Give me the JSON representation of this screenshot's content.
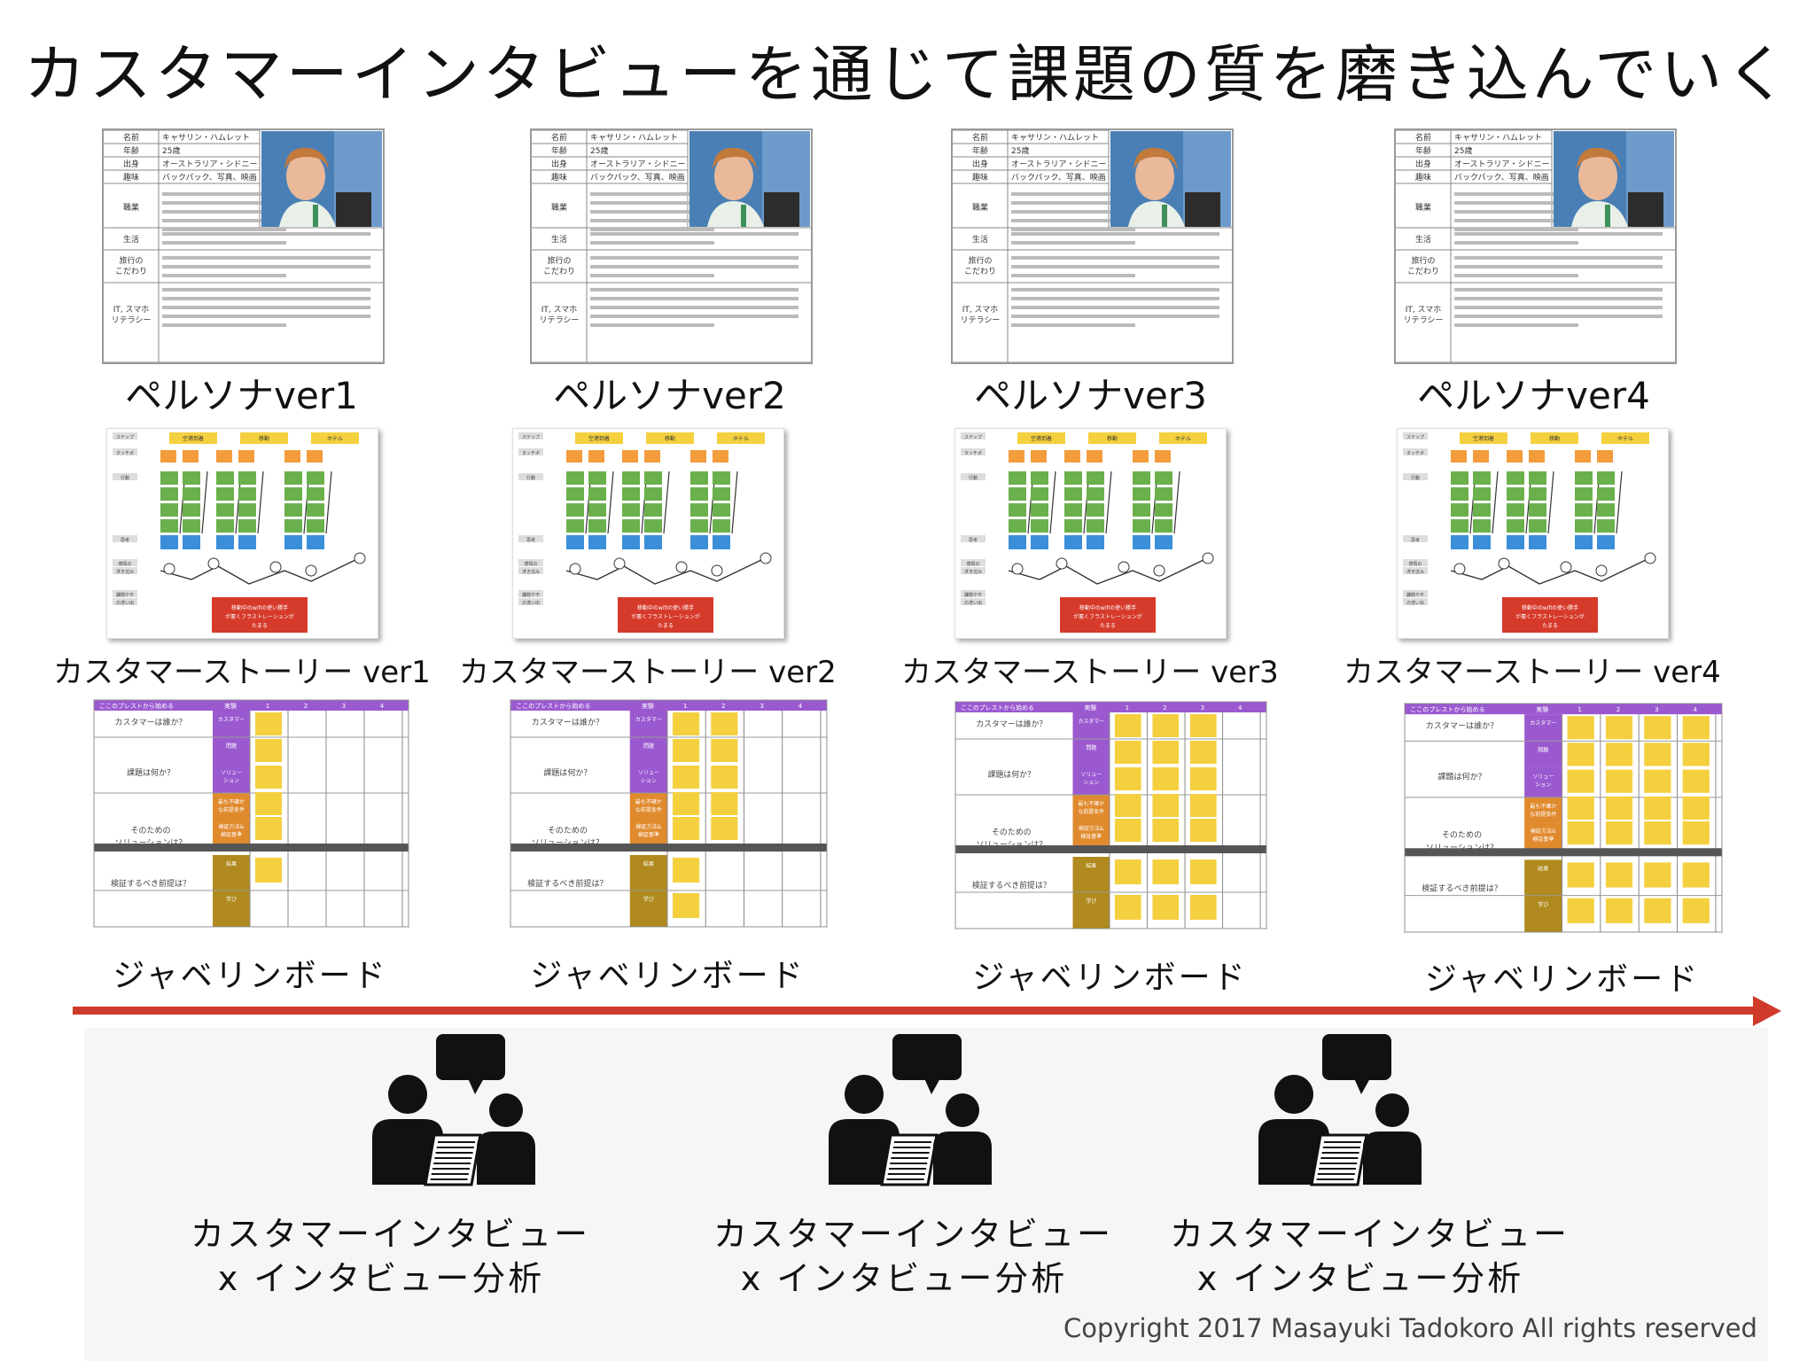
{
  "title": "カスタマーインタビューを通じて課題の質を磨き込んでいく",
  "persona": {
    "labels": [
      "名前",
      "年齢",
      "出身",
      "趣味",
      "職業",
      "生活",
      "旅行の\nこだわり",
      "IT, スマホ\nリテラシー"
    ],
    "values": [
      "キャサリン・ハムレット",
      "25歳",
      "オーストラリア・シドニー",
      "バックパック、写真、映画"
    ],
    "columns": [
      {
        "caption": "ペルソナver1"
      },
      {
        "caption": "ペルソナver2"
      },
      {
        "caption": "ペルソナver3"
      },
      {
        "caption": "ペルソナver4"
      }
    ]
  },
  "story": {
    "phases": [
      "空港到着",
      "移動",
      "ホテル"
    ],
    "row_labels": [
      "ステップ",
      "タッチポイント",
      "行動",
      "思考",
      "感情の\n浮き沈み",
      "課題や不\nの洗い出"
    ],
    "pain_point": "移動中のwifiの使い勝手が悪くフラストレーションがたまる",
    "columns": [
      {
        "caption": "カスタマーストーリー ver1"
      },
      {
        "caption": "カスタマーストーリー ver2"
      },
      {
        "caption": "カスタマーストーリー ver3"
      },
      {
        "caption": "カスタマーストーリー ver4"
      }
    ]
  },
  "board": {
    "header": [
      "ここのプレストから始める",
      "実験",
      "1",
      "2",
      "3",
      "4"
    ],
    "questions": [
      "カスタマーは誰か？",
      "課題は何か？",
      "そのための\nソリューションは？",
      "検証するべき前提は？"
    ],
    "row_tags": [
      "カスタマー",
      "問題",
      "ソリュー\nション",
      "最も不確か\nな前提条件",
      "検証方法&\n検証基準",
      "結果",
      "学び"
    ],
    "columns": [
      {
        "caption": "ジャベリンボード",
        "filled_cols": 1
      },
      {
        "caption": "ジャベリンボード",
        "filled_cols": 2
      },
      {
        "caption": "ジャベリンボード",
        "filled_cols": 3
      },
      {
        "caption": "ジャベリンボード",
        "filled_cols": 4
      }
    ]
  },
  "interviews": [
    {
      "line1": "カスタマーインタビュー",
      "line2": "x インタビュー分析",
      "icon": "interview-icon"
    },
    {
      "line1": "カスタマーインタビュー",
      "line2": "x インタビュー分析",
      "icon": "interview-icon"
    },
    {
      "line1": "カスタマーインタビュー",
      "line2": "x インタビュー分析",
      "icon": "interview-icon"
    }
  ],
  "copyright": "Copyright 2017 Masayuki Tadokoro All rights reserved",
  "colors": {
    "arrow": "#cf3b2b",
    "sticky_yellow": "#f4d03f",
    "sticky_orange": "#f39c3c",
    "sticky_green": "#6ab04c",
    "sticky_blue": "#3b8fd9",
    "pain_red": "#d63a2a",
    "board_purple": "#9b59d0",
    "board_orange": "#e08a2e",
    "board_olive": "#b08a1e"
  }
}
